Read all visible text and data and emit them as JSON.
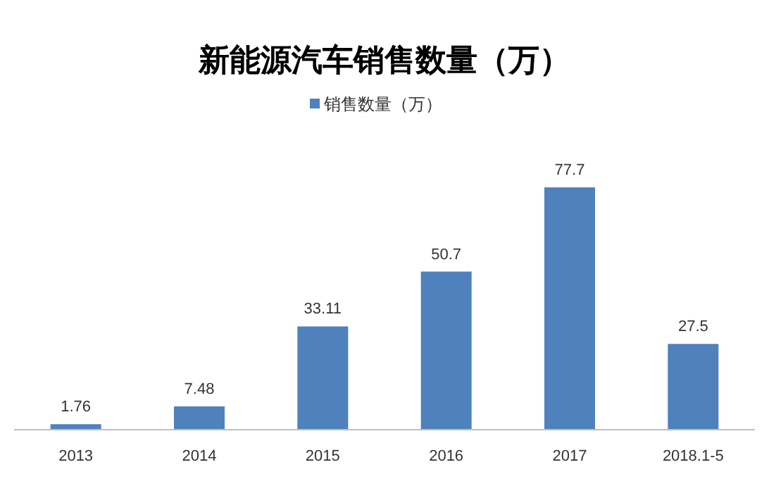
{
  "chart_data": {
    "type": "bar",
    "title": "新能源汽车销售数量（万）",
    "categories": [
      "2013",
      "2014",
      "2015",
      "2016",
      "2017",
      "2018.1-5"
    ],
    "series": [
      {
        "name": "销售数量（万）",
        "color": "#4f81bd",
        "values": [
          1.76,
          7.48,
          33.11,
          50.7,
          77.7,
          27.5
        ]
      }
    ],
    "data_labels": true,
    "legend": "top"
  }
}
